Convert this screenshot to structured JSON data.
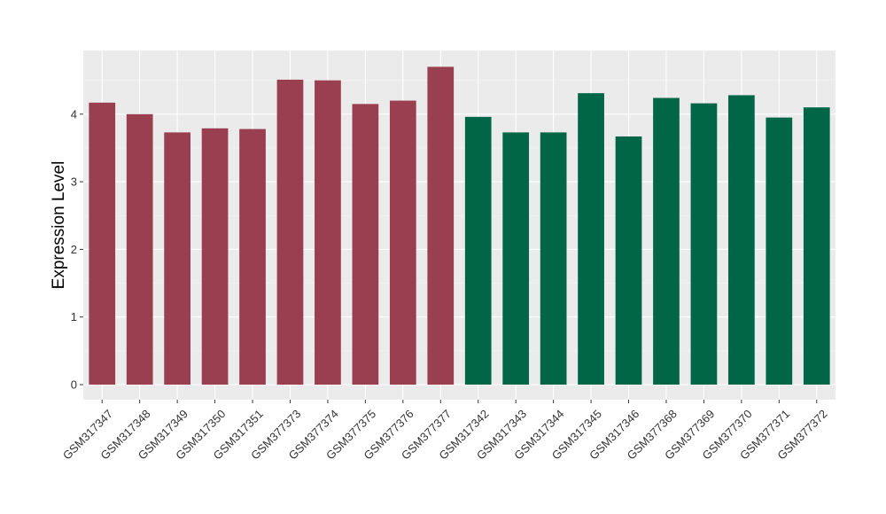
{
  "chart_data": {
    "type": "bar",
    "title": "",
    "xlabel": "",
    "ylabel": "Expression Level",
    "ylim": [
      0,
      4.9
    ],
    "yticks": [
      0,
      1,
      2,
      3,
      4
    ],
    "grid": true,
    "legend": "none",
    "panel_background": "#ebebeb",
    "categories": [
      "GSM317347",
      "GSM317348",
      "GSM317349",
      "GSM317350",
      "GSM317351",
      "GSM377373",
      "GSM377374",
      "GSM377375",
      "GSM377376",
      "GSM377377",
      "GSM317342",
      "GSM317343",
      "GSM317344",
      "GSM317345",
      "GSM317346",
      "GSM377368",
      "GSM377369",
      "GSM377370",
      "GSM377371",
      "GSM377372"
    ],
    "values": [
      4.17,
      4.0,
      3.73,
      3.79,
      3.78,
      4.51,
      4.5,
      4.15,
      4.2,
      4.7,
      3.96,
      3.73,
      3.73,
      4.31,
      3.67,
      4.24,
      4.16,
      4.28,
      3.95,
      4.1
    ],
    "bar_colors": [
      "#993f4f",
      "#993f4f",
      "#993f4f",
      "#993f4f",
      "#993f4f",
      "#993f4f",
      "#993f4f",
      "#993f4f",
      "#993f4f",
      "#993f4f",
      "#006646",
      "#006646",
      "#006646",
      "#006646",
      "#006646",
      "#006646",
      "#006646",
      "#006646",
      "#006646",
      "#006646"
    ]
  }
}
